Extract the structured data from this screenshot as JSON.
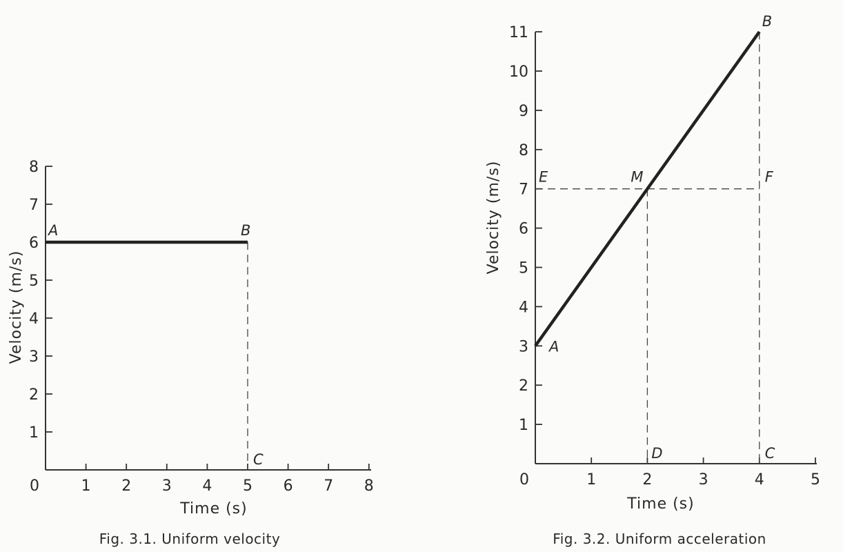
{
  "chart_data": [
    {
      "type": "line",
      "caption": "Fig. 3.1. Uniform velocity",
      "xlabel": "Time (s)",
      "ylabel": "Velocity (m/s)",
      "xlim": [
        0,
        8
      ],
      "ylim": [
        0,
        8
      ],
      "x_ticks": [
        "0",
        "1",
        "2",
        "3",
        "4",
        "5",
        "6",
        "7",
        "8"
      ],
      "y_ticks": [
        "1",
        "2",
        "3",
        "4",
        "5",
        "6",
        "7",
        "8"
      ],
      "grid": false,
      "series": [
        {
          "x": [
            0,
            5
          ],
          "y": [
            6,
            6
          ]
        }
      ],
      "points": [
        {
          "label": "A",
          "x": 0,
          "y": 6
        },
        {
          "label": "B",
          "x": 5,
          "y": 6
        },
        {
          "label": "C",
          "x": 5,
          "y": 0
        }
      ],
      "guides": [
        {
          "from": [
            5,
            6
          ],
          "to": [
            5,
            0
          ],
          "style": "dashed"
        }
      ]
    },
    {
      "type": "line",
      "caption": "Fig. 3.2. Uniform acceleration",
      "xlabel": "Time (s)",
      "ylabel": "Velocity (m/s)",
      "xlim": [
        0,
        5
      ],
      "ylim": [
        0,
        11
      ],
      "x_ticks": [
        "0",
        "1",
        "2",
        "3",
        "4",
        "5"
      ],
      "y_ticks": [
        "1",
        "2",
        "3",
        "4",
        "5",
        "6",
        "7",
        "8",
        "9",
        "10",
        "11"
      ],
      "grid": false,
      "series": [
        {
          "x": [
            0,
            4
          ],
          "y": [
            3,
            11
          ]
        }
      ],
      "points": [
        {
          "label": "A",
          "x": 0,
          "y": 3
        },
        {
          "label": "B",
          "x": 4,
          "y": 11
        },
        {
          "label": "M",
          "x": 2,
          "y": 7
        },
        {
          "label": "E",
          "x": 0,
          "y": 7
        },
        {
          "label": "F",
          "x": 4,
          "y": 7
        },
        {
          "label": "D",
          "x": 2,
          "y": 0
        },
        {
          "label": "C",
          "x": 4,
          "y": 0
        }
      ],
      "guides": [
        {
          "from": [
            0,
            7
          ],
          "to": [
            4,
            7
          ],
          "style": "dashed"
        },
        {
          "from": [
            2,
            7
          ],
          "to": [
            2,
            0
          ],
          "style": "dashed"
        },
        {
          "from": [
            4,
            11
          ],
          "to": [
            4,
            0
          ],
          "style": "dashed"
        }
      ]
    }
  ]
}
